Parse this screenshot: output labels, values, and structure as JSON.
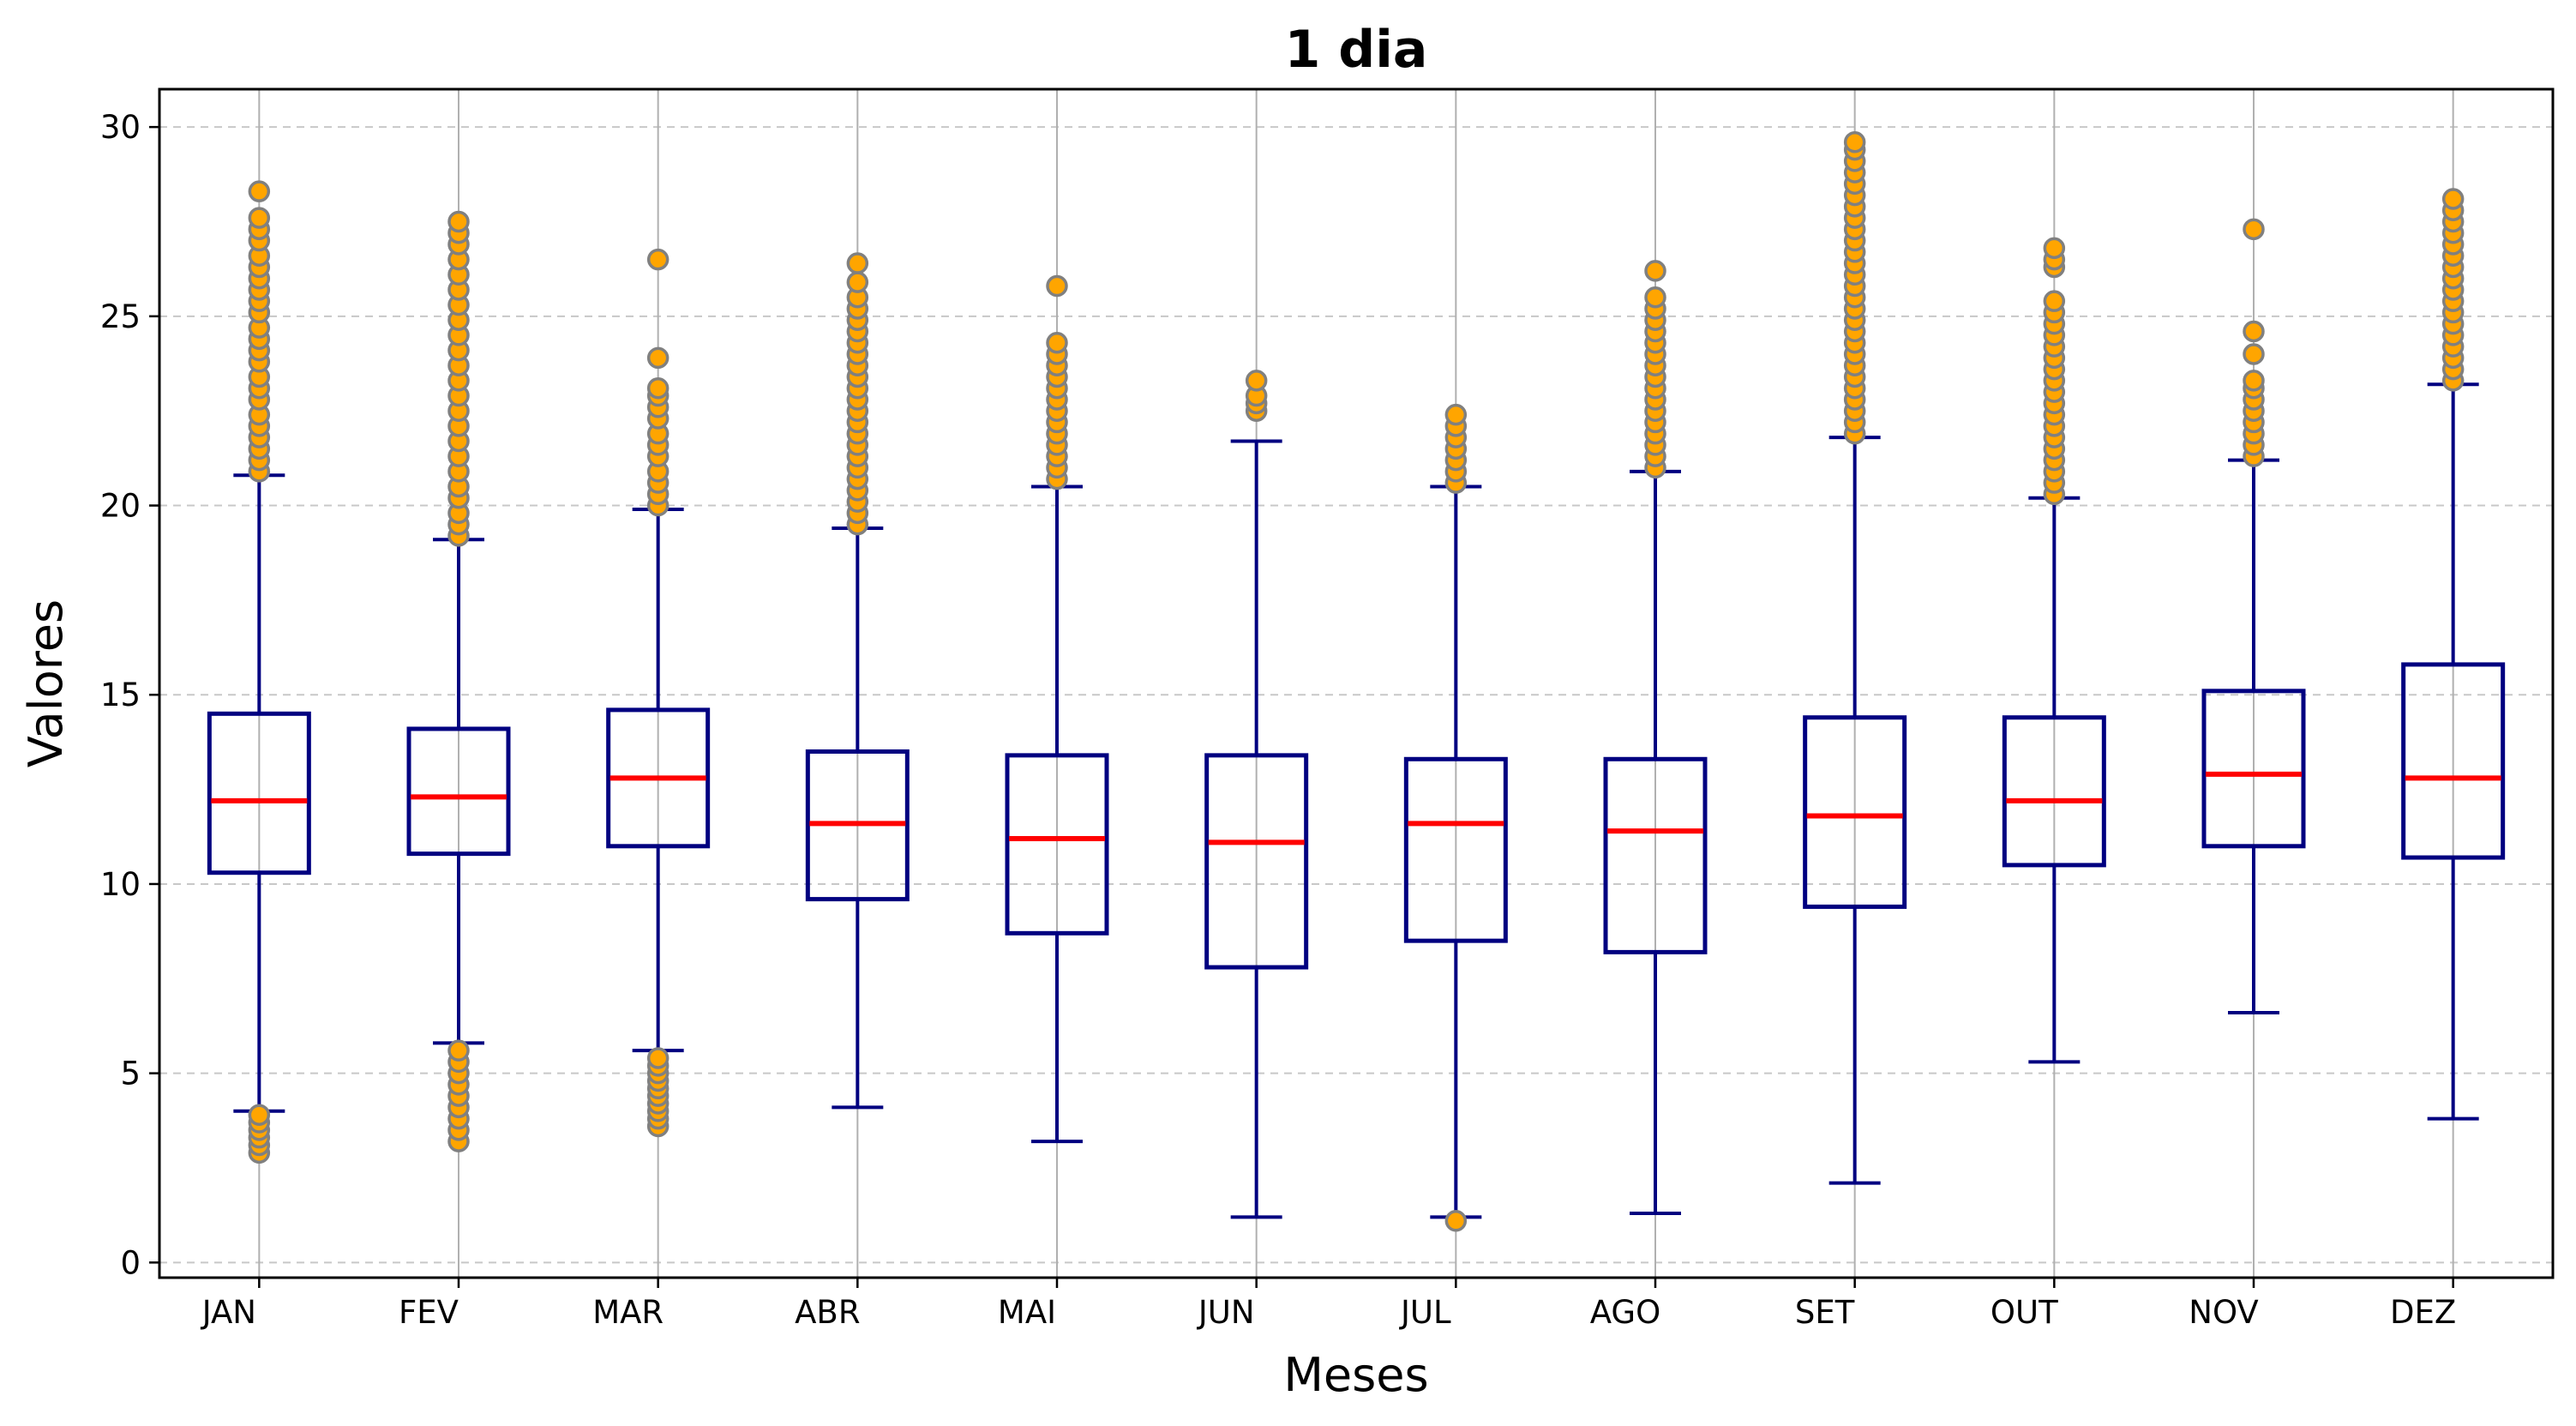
{
  "chart_data": {
    "type": "box",
    "title": "1 dia",
    "xlabel": "Meses",
    "ylabel": "Valores",
    "ylim": [
      -0.4,
      31.0
    ],
    "yticks": [
      0,
      5,
      10,
      15,
      20,
      25,
      30
    ],
    "grid": {
      "x": true,
      "y": "dashed"
    },
    "colors": {
      "box": "#000080",
      "median": "#ff0000",
      "outlier_fill": "#ffa500",
      "outlier_edge": "#808080",
      "grid_x": "#b0b0b0",
      "grid_y": "#c8c8c8"
    },
    "categories": [
      "JAN",
      "FEV",
      "MAR",
      "ABR",
      "MAI",
      "JUN",
      "JUL",
      "AGO",
      "SET",
      "OUT",
      "NOV",
      "DEZ"
    ],
    "boxes": [
      {
        "whislo": 4.0,
        "q1": 10.3,
        "med": 12.2,
        "q3": 14.5,
        "whishi": 20.8,
        "fliers": [
          2.9,
          3.1,
          3.3,
          3.5,
          3.7,
          3.9,
          20.9,
          21.2,
          21.5,
          21.8,
          22.1,
          22.4,
          22.8,
          23.1,
          23.4,
          23.8,
          24.1,
          24.4,
          24.7,
          25.1,
          25.4,
          25.7,
          26.0,
          26.3,
          26.6,
          27.0,
          27.3,
          27.6,
          28.3
        ]
      },
      {
        "whislo": 5.8,
        "q1": 10.8,
        "med": 12.3,
        "q3": 14.1,
        "whishi": 19.1,
        "fliers": [
          3.2,
          3.5,
          3.8,
          4.1,
          4.4,
          4.7,
          5.0,
          5.3,
          5.6,
          19.2,
          19.5,
          19.8,
          20.2,
          20.5,
          20.9,
          21.3,
          21.7,
          22.1,
          22.5,
          22.9,
          23.3,
          23.7,
          24.1,
          24.5,
          24.9,
          25.3,
          25.7,
          26.1,
          26.5,
          26.9,
          27.2,
          27.5
        ]
      },
      {
        "whislo": 5.6,
        "q1": 11.0,
        "med": 12.8,
        "q3": 14.6,
        "whishi": 19.9,
        "fliers": [
          3.6,
          3.8,
          4.0,
          4.2,
          4.4,
          4.6,
          4.8,
          5.0,
          5.2,
          5.4,
          20.0,
          20.3,
          20.6,
          20.9,
          21.3,
          21.6,
          21.9,
          22.3,
          22.6,
          22.9,
          23.1,
          23.9,
          26.5
        ]
      },
      {
        "whislo": 4.1,
        "q1": 9.6,
        "med": 11.6,
        "q3": 13.5,
        "whishi": 19.4,
        "fliers": [
          19.5,
          19.8,
          20.1,
          20.4,
          20.7,
          21.0,
          21.3,
          21.6,
          21.9,
          22.2,
          22.5,
          22.8,
          23.1,
          23.4,
          23.7,
          24.0,
          24.3,
          24.6,
          24.9,
          25.2,
          25.5,
          25.9,
          26.4
        ]
      },
      {
        "whislo": 3.2,
        "q1": 8.7,
        "med": 11.2,
        "q3": 13.4,
        "whishi": 20.5,
        "fliers": [
          20.7,
          21.0,
          21.3,
          21.6,
          21.9,
          22.2,
          22.5,
          22.8,
          23.1,
          23.4,
          23.7,
          24.0,
          24.3,
          25.8
        ]
      },
      {
        "whislo": 1.2,
        "q1": 7.8,
        "med": 11.1,
        "q3": 13.4,
        "whishi": 21.7,
        "fliers": [
          22.5,
          22.7,
          22.9,
          23.3
        ]
      },
      {
        "whislo": 1.2,
        "q1": 8.5,
        "med": 11.6,
        "q3": 13.3,
        "whishi": 20.5,
        "fliers": [
          1.1,
          20.6,
          20.9,
          21.2,
          21.5,
          21.8,
          22.1,
          22.4
        ]
      },
      {
        "whislo": 1.3,
        "q1": 8.2,
        "med": 11.4,
        "q3": 13.3,
        "whishi": 20.9,
        "fliers": [
          21.0,
          21.3,
          21.6,
          21.9,
          22.2,
          22.5,
          22.8,
          23.1,
          23.4,
          23.7,
          24.0,
          24.3,
          24.6,
          24.9,
          25.2,
          25.5,
          26.2
        ]
      },
      {
        "whislo": 2.1,
        "q1": 9.4,
        "med": 11.8,
        "q3": 14.4,
        "whishi": 21.8,
        "fliers": [
          21.9,
          22.2,
          22.5,
          22.8,
          23.1,
          23.4,
          23.7,
          24.0,
          24.3,
          24.6,
          24.9,
          25.2,
          25.5,
          25.8,
          26.1,
          26.4,
          26.7,
          27.0,
          27.3,
          27.6,
          27.9,
          28.2,
          28.5,
          28.8,
          29.1,
          29.4,
          29.6
        ]
      },
      {
        "whislo": 5.3,
        "q1": 10.5,
        "med": 12.2,
        "q3": 14.4,
        "whishi": 20.2,
        "fliers": [
          20.3,
          20.6,
          20.9,
          21.2,
          21.5,
          21.8,
          22.1,
          22.4,
          22.7,
          23.0,
          23.3,
          23.6,
          23.9,
          24.2,
          24.5,
          24.8,
          25.1,
          25.4,
          26.3,
          26.5,
          26.8
        ]
      },
      {
        "whislo": 6.6,
        "q1": 11.0,
        "med": 12.9,
        "q3": 15.1,
        "whishi": 21.2,
        "fliers": [
          21.3,
          21.6,
          21.9,
          22.2,
          22.5,
          22.8,
          23.1,
          23.3,
          24.0,
          24.6,
          27.3
        ]
      },
      {
        "whislo": 3.8,
        "q1": 10.7,
        "med": 12.8,
        "q3": 15.8,
        "whishi": 23.2,
        "fliers": [
          23.3,
          23.6,
          23.9,
          24.2,
          24.5,
          24.8,
          25.1,
          25.4,
          25.7,
          26.0,
          26.3,
          26.6,
          26.9,
          27.2,
          27.5,
          27.8,
          28.1
        ]
      }
    ]
  }
}
